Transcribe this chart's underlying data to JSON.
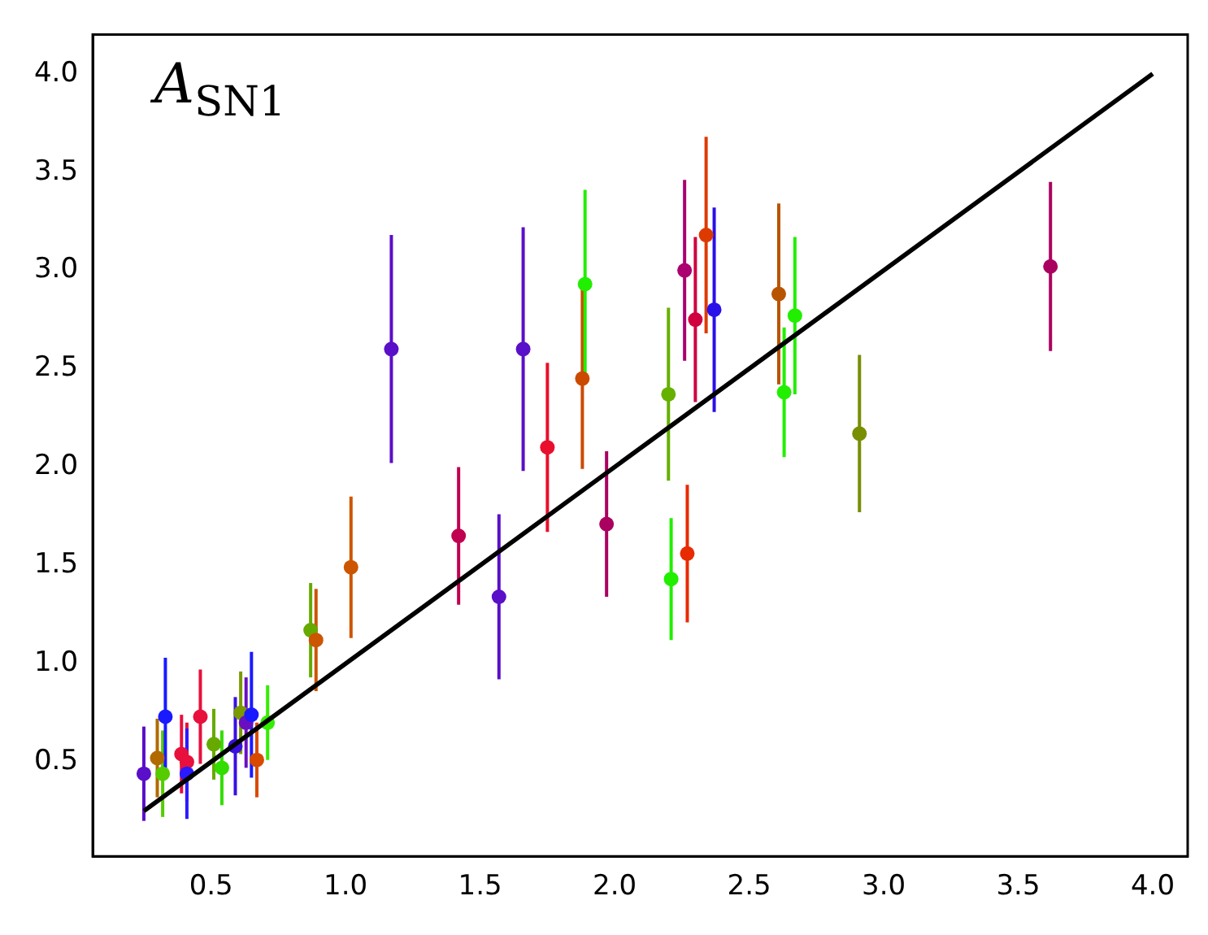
{
  "chart_data": {
    "type": "scatter",
    "annotations": [
      "A$_{SN1}$"
    ],
    "xlim": [
      0.06,
      4.13
    ],
    "ylim": [
      0.02,
      4.2
    ],
    "xticks": [
      0.5,
      {
        "value": 1,
        "label": "1.0"
      },
      1.5,
      {
        "value": 2,
        "label": "2.0"
      },
      2.5,
      {
        "value": 3,
        "label": "3.0"
      },
      3.5,
      {
        "value": 4,
        "label": "4.0"
      }
    ],
    "yticks": [
      0.5,
      {
        "value": 1,
        "label": "1.0"
      },
      1.5,
      {
        "value": 2,
        "label": "2.0"
      },
      2.5,
      {
        "value": 3,
        "label": "3.0"
      },
      3.5,
      {
        "value": 4,
        "label": "4.0"
      }
    ],
    "grid": false,
    "legend": false,
    "series": [
      {
        "type": "scatter",
        "marker": "circle",
        "x": [
          0.25,
          0.3,
          0.32,
          0.33,
          0.39,
          0.41,
          0.41,
          0.46,
          0.51,
          0.54,
          0.59,
          0.61,
          0.63,
          0.65,
          0.67,
          0.71,
          0.87,
          0.89,
          1.02,
          1.17,
          1.42,
          1.57,
          1.66,
          1.75,
          1.88,
          1.89,
          1.97,
          2.2,
          2.21,
          2.27,
          2.26,
          2.3,
          2.34,
          2.37,
          2.61,
          2.63,
          2.67,
          2.91,
          3.62
        ],
        "values": [
          0.44,
          0.52,
          0.44,
          0.73,
          0.54,
          0.5,
          0.44,
          0.73,
          0.59,
          0.47,
          0.58,
          0.75,
          0.7,
          0.74,
          0.51,
          0.7,
          1.17,
          1.12,
          1.49,
          2.6,
          1.65,
          1.34,
          2.6,
          2.1,
          2.45,
          2.93,
          1.71,
          2.37,
          1.43,
          1.56,
          3.0,
          2.75,
          3.18,
          2.8,
          2.88,
          2.38,
          2.77,
          2.17,
          3.02
        ],
        "errors": [
          0.24,
          0.2,
          0.22,
          0.3,
          0.2,
          0.2,
          0.23,
          0.24,
          0.18,
          0.19,
          0.25,
          0.21,
          0.23,
          0.32,
          0.19,
          0.19,
          0.24,
          0.26,
          0.36,
          0.58,
          0.35,
          0.42,
          0.62,
          0.43,
          0.46,
          0.48,
          0.37,
          0.44,
          0.31,
          0.35,
          0.46,
          0.42,
          0.5,
          0.52,
          0.46,
          0.33,
          0.4,
          0.4,
          0.43
        ],
        "colors": [
          "#5a0fc8",
          "#b06a00",
          "#55cc00",
          "#1a1aff",
          "#e8103c",
          "#e8103c",
          "#2a1aff",
          "#e8103c",
          "#66aa00",
          "#33dd00",
          "#3a10e0",
          "#7a9a00",
          "#6a0fc0",
          "#1a1aff",
          "#d84a00",
          "#33ee00",
          "#66aa00",
          "#cc5500",
          "#cc5500",
          "#5a0fc8",
          "#c00050",
          "#5a0fc8",
          "#5a0fc8",
          "#e8102c",
          "#cc4a00",
          "#22ee00",
          "#aa0060",
          "#66b000",
          "#22ee00",
          "#e82a00",
          "#aa0070",
          "#d00040",
          "#dd3a00",
          "#2a10e8",
          "#b85400",
          "#22ee00",
          "#22ee00",
          "#778f00",
          "#aa0060"
        ]
      },
      {
        "type": "line",
        "x": [
          0.25,
          4.0
        ],
        "values": [
          0.25,
          4.0
        ],
        "color": "#000000"
      }
    ]
  }
}
